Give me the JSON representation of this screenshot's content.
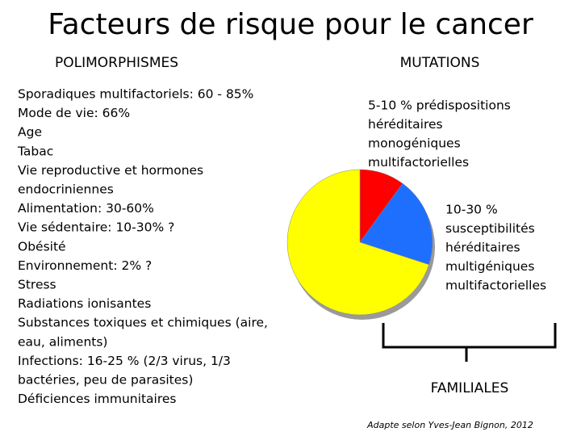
{
  "title": "Facteurs de risque pour le cancer",
  "left": {
    "heading": "POLIMORPHISMES",
    "lines": [
      "Sporadiques multifactoriels: 60 - 85%",
      "Mode de vie: 66%",
      "Age",
      "Tabac",
      "Vie reproductive et hormones",
      "endocriniennes",
      "Alimentation: 30-60%",
      "Vie sédentaire: 10-30% ?",
      "Obésité",
      "Environnement: 2% ?",
      "Stress",
      "Radiations ionisantes",
      "Substances toxiques et chimiques (aire,",
      "eau, aliments)",
      "Infections: 16-25 % (2/3 virus, 1/3",
      "bactéries, peu de parasites)",
      "Déficiences immunitaires"
    ]
  },
  "right": {
    "heading": "MUTATIONS",
    "mono": [
      "5-10 % prédispositions",
      "héréditaires",
      "monogéniques",
      "multifactorielles"
    ],
    "multi": [
      "10-30 %",
      "susceptibilités",
      "héréditaires",
      "multigéniques",
      "multifactorielles"
    ],
    "familiales": "FAMILIALES",
    "credit": "Adapte selon Yves-Jean Bignon, 2012"
  },
  "pie": {
    "values": [
      10,
      20,
      70
    ],
    "colors": [
      "#ff0000",
      "#1f6fff",
      "#ffff00"
    ]
  }
}
